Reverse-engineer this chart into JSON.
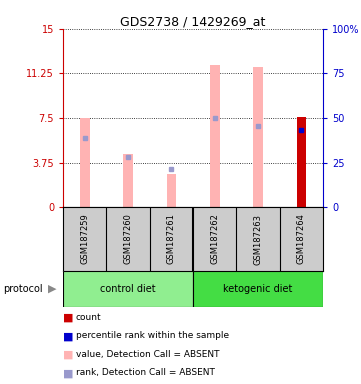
{
  "title": "GDS2738 / 1429269_at",
  "samples": [
    "GSM187259",
    "GSM187260",
    "GSM187261",
    "GSM187262",
    "GSM187263",
    "GSM187264"
  ],
  "groups": [
    {
      "name": "control diet",
      "indices": [
        0,
        1,
        2
      ],
      "color": "#90ee90"
    },
    {
      "name": "ketogenic diet",
      "indices": [
        3,
        4,
        5
      ],
      "color": "#44dd44"
    }
  ],
  "ylim_left": [
    0,
    15
  ],
  "ylim_right": [
    0,
    100
  ],
  "yticks_left": [
    0,
    3.75,
    7.5,
    11.25,
    15
  ],
  "yticks_right": [
    0,
    25,
    50,
    75,
    100
  ],
  "ytick_labels_left": [
    "0",
    "3.75",
    "7.5",
    "11.25",
    "15"
  ],
  "ytick_labels_right": [
    "0",
    "25",
    "50",
    "75",
    "100%"
  ],
  "left_axis_color": "#cc0000",
  "right_axis_color": "#0000cc",
  "pink_bar_values": [
    7.5,
    4.5,
    2.8,
    12.0,
    11.8,
    7.6
  ],
  "pink_bar_color": "#ffb3b3",
  "blue_marker_values": [
    5.8,
    4.2,
    3.2,
    7.5,
    6.8,
    6.5
  ],
  "blue_marker_color": "#9999cc",
  "red_bar_index": 5,
  "red_bar_value": 7.6,
  "red_bar_color": "#cc0000",
  "blue_square_index": 5,
  "blue_square_value": 6.5,
  "blue_square_color": "#0000cc",
  "legend_items": [
    {
      "label": "count",
      "color": "#cc0000"
    },
    {
      "label": "percentile rank within the sample",
      "color": "#0000cc"
    },
    {
      "label": "value, Detection Call = ABSENT",
      "color": "#ffb3b3"
    },
    {
      "label": "rank, Detection Call = ABSENT",
      "color": "#9999cc"
    }
  ],
  "bg_color": "#ffffff",
  "label_area_color": "#cccccc",
  "grid_color": "#000000",
  "spine_color": "#000000"
}
